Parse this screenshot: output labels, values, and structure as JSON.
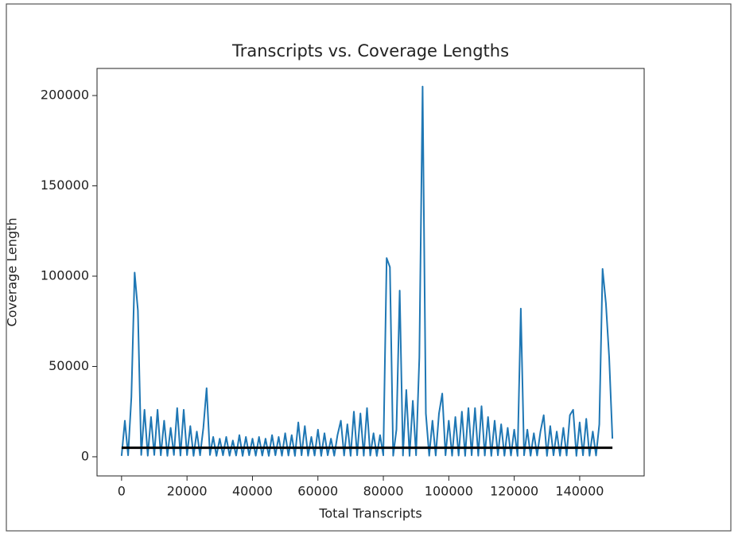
{
  "chart_data": {
    "type": "line",
    "title": "Transcripts vs. Coverage Lengths",
    "xlabel": "Total Transcripts",
    "ylabel": "Coverage Length",
    "xlim": [
      -7500,
      159700
    ],
    "ylim": [
      -10600,
      215000
    ],
    "xticks": [
      0,
      20000,
      40000,
      60000,
      80000,
      100000,
      120000,
      140000
    ],
    "yticks": [
      0,
      50000,
      100000,
      150000,
      200000
    ],
    "series": [
      {
        "color": "#1f77b4",
        "x": [
          0,
          1000,
          2000,
          3000,
          4000,
          5000,
          6000,
          7000,
          8000,
          9000,
          10000,
          11000,
          12000,
          13000,
          14000,
          15000,
          16000,
          17000,
          18000,
          19000,
          20000,
          21000,
          22000,
          23000,
          24000,
          25000,
          26000,
          27000,
          28000,
          29000,
          30000,
          31000,
          32000,
          33000,
          34000,
          35000,
          36000,
          37000,
          38000,
          39000,
          40000,
          41000,
          42000,
          43000,
          44000,
          45000,
          46000,
          47000,
          48000,
          49000,
          50000,
          51000,
          52000,
          53000,
          54000,
          55000,
          56000,
          57000,
          58000,
          59000,
          60000,
          61000,
          62000,
          63000,
          64000,
          65000,
          66000,
          67000,
          68000,
          69000,
          70000,
          71000,
          72000,
          73000,
          74000,
          75000,
          76000,
          77000,
          78000,
          79000,
          80000,
          81000,
          82000,
          83000,
          84000,
          85000,
          86000,
          87000,
          88000,
          89000,
          90000,
          91000,
          92000,
          93000,
          94000,
          95000,
          96000,
          97000,
          98000,
          99000,
          100000,
          101000,
          102000,
          103000,
          104000,
          105000,
          106000,
          107000,
          108000,
          109000,
          110000,
          111000,
          112000,
          113000,
          114000,
          115000,
          116000,
          117000,
          118000,
          119000,
          120000,
          121000,
          122000,
          123000,
          124000,
          125000,
          126000,
          127000,
          128000,
          129000,
          130000,
          131000,
          132000,
          133000,
          134000,
          135000,
          136000,
          137000,
          138000,
          139000,
          140000,
          141000,
          142000,
          143000,
          144000,
          145000,
          146000,
          147000,
          148000,
          149000,
          150000
        ],
        "values": [
          500,
          20000,
          800,
          33000,
          102000,
          81000,
          1000,
          26000,
          600,
          22000,
          1000,
          26000,
          800,
          20000,
          500,
          16000,
          1000,
          27000,
          700,
          26000,
          900,
          17000,
          500,
          14000,
          800,
          16000,
          38000,
          1000,
          11000,
          500,
          10000,
          800,
          11000,
          600,
          9000,
          700,
          12000,
          500,
          11000,
          800,
          10000,
          600,
          11000,
          700,
          10000,
          500,
          12000,
          800,
          11000,
          600,
          13000,
          700,
          12000,
          500,
          19000,
          800,
          17000,
          600,
          11000,
          700,
          15000,
          500,
          13000,
          800,
          10000,
          600,
          12000,
          20000,
          700,
          18000,
          500,
          25000,
          800,
          24000,
          600,
          27000,
          700,
          13000,
          500,
          12000,
          800,
          110000,
          105000,
          600,
          15000,
          92000,
          700,
          37000,
          500,
          31000,
          800,
          55000,
          205000,
          24000,
          600,
          20000,
          700,
          24000,
          35000,
          800,
          20000,
          600,
          22000,
          700,
          25000,
          500,
          27000,
          800,
          27000,
          600,
          28000,
          700,
          22000,
          500,
          20000,
          800,
          18000,
          600,
          16000,
          700,
          15000,
          500,
          82000,
          800,
          15000,
          600,
          13000,
          700,
          14000,
          23000,
          500,
          17000,
          800,
          14000,
          600,
          16000,
          700,
          23000,
          26000,
          500,
          19000,
          800,
          21000,
          600,
          14000,
          700,
          18000,
          104000,
          85000,
          55000,
          10000
        ]
      },
      {
        "color": "#000000",
        "x": [
          0,
          150000
        ],
        "values": [
          5000,
          5000
        ]
      }
    ]
  }
}
